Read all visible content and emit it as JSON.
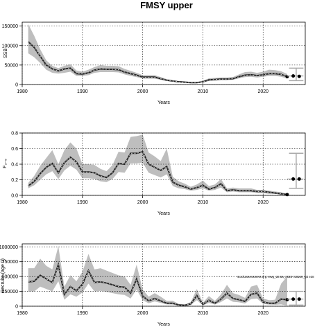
{
  "figure": {
    "title": "FMSY upper",
    "note": "stockassessment.org: ewg_22.6a_2024 r18160_git e38"
  },
  "chart_data": [
    {
      "type": "line",
      "xlabel": "Years",
      "ylabel": "SSB",
      "xlim": [
        1980,
        2027
      ],
      "ylim": [
        0,
        160000
      ],
      "xticks": [
        1980,
        1990,
        2000,
        2010,
        2020
      ],
      "yticks": [
        0,
        50000,
        100000,
        150000
      ],
      "ytick_labels": [
        "0",
        "50000",
        "100000",
        "150000"
      ],
      "grid": true,
      "colors": {
        "band": "#bebebe",
        "line": "#222222"
      },
      "x": [
        1981,
        1982,
        1983,
        1984,
        1985,
        1986,
        1987,
        1988,
        1989,
        1990,
        1991,
        1992,
        1993,
        1994,
        1995,
        1996,
        1997,
        1998,
        1999,
        2000,
        2001,
        2002,
        2003,
        2004,
        2005,
        2006,
        2007,
        2008,
        2009,
        2010,
        2011,
        2012,
        2013,
        2014,
        2015,
        2016,
        2017,
        2018,
        2019,
        2020,
        2021,
        2022,
        2023,
        2024
      ],
      "estimate": [
        110000,
        95000,
        72000,
        50000,
        40000,
        35000,
        40000,
        42000,
        28000,
        27000,
        30000,
        37000,
        40000,
        39000,
        39000,
        38000,
        32000,
        28000,
        24000,
        19000,
        19000,
        19000,
        15000,
        11000,
        9000,
        7000,
        6000,
        5000,
        5000,
        7000,
        12000,
        13000,
        14000,
        14000,
        15000,
        20000,
        24000,
        25000,
        23000,
        25000,
        28000,
        28000,
        26000,
        20000
      ],
      "lower": [
        80000,
        70000,
        55000,
        38000,
        30000,
        28000,
        30000,
        33000,
        22000,
        22000,
        24000,
        30000,
        32000,
        32000,
        32000,
        31000,
        26000,
        22000,
        19000,
        15000,
        15000,
        15000,
        12000,
        9000,
        7000,
        5500,
        4500,
        4000,
        4000,
        5500,
        9000,
        10000,
        11000,
        11000,
        12000,
        16000,
        19000,
        20000,
        18000,
        20000,
        22000,
        22000,
        20000,
        15000
      ],
      "upper": [
        155000,
        125000,
        90000,
        62000,
        48000,
        42000,
        48000,
        52000,
        36000,
        33000,
        38000,
        45000,
        50000,
        48000,
        48000,
        47000,
        40000,
        35000,
        30000,
        24000,
        24000,
        24000,
        19000,
        14000,
        11000,
        9000,
        8000,
        6500,
        6500,
        9000,
        16000,
        17000,
        18000,
        18000,
        19000,
        26000,
        32000,
        33000,
        30000,
        33000,
        38000,
        37000,
        34000,
        27000
      ],
      "forecast": {
        "x": [
          2025,
          2026
        ],
        "values": [
          22000,
          21000
        ],
        "interval": {
          "x": 2025.5,
          "low": 10000,
          "high": 42000
        }
      }
    },
    {
      "type": "line",
      "xlabel": "Years",
      "ylabel": "F₃₋₅",
      "xlim": [
        1980,
        2027
      ],
      "ylim": [
        0,
        0.8
      ],
      "xticks": [
        1980,
        1990,
        2000,
        2010,
        2020
      ],
      "yticks": [
        0,
        0.2,
        0.4,
        0.6,
        0.8
      ],
      "ytick_labels": [
        "0.0",
        "0.2",
        "0.4",
        "0.6",
        "0.8"
      ],
      "grid": true,
      "colors": {
        "band": "#bebebe",
        "line": "#222222"
      },
      "x": [
        1981,
        1982,
        1983,
        1984,
        1985,
        1986,
        1987,
        1988,
        1989,
        1990,
        1991,
        1992,
        1993,
        1994,
        1995,
        1996,
        1997,
        1998,
        1999,
        2000,
        2001,
        2002,
        2003,
        2004,
        2005,
        2006,
        2007,
        2008,
        2009,
        2010,
        2011,
        2012,
        2013,
        2014,
        2015,
        2016,
        2017,
        2018,
        2019,
        2020,
        2021,
        2022,
        2023,
        2024
      ],
      "estimate": [
        0.12,
        0.18,
        0.28,
        0.36,
        0.41,
        0.29,
        0.42,
        0.49,
        0.43,
        0.3,
        0.3,
        0.29,
        0.25,
        0.23,
        0.29,
        0.41,
        0.4,
        0.54,
        0.54,
        0.56,
        0.4,
        0.36,
        0.32,
        0.37,
        0.17,
        0.13,
        0.11,
        0.08,
        0.1,
        0.13,
        0.08,
        0.1,
        0.15,
        0.06,
        0.07,
        0.06,
        0.06,
        0.06,
        0.05,
        0.05,
        0.04,
        0.03,
        0.02,
        0.01
      ],
      "lower": [
        0.09,
        0.13,
        0.2,
        0.27,
        0.31,
        0.21,
        0.32,
        0.38,
        0.33,
        0.22,
        0.22,
        0.21,
        0.18,
        0.17,
        0.21,
        0.3,
        0.29,
        0.41,
        0.41,
        0.42,
        0.29,
        0.26,
        0.23,
        0.27,
        0.12,
        0.09,
        0.08,
        0.06,
        0.07,
        0.09,
        0.06,
        0.07,
        0.1,
        0.04,
        0.05,
        0.04,
        0.04,
        0.04,
        0.03,
        0.03,
        0.02,
        0.02,
        0.01,
        0.005
      ],
      "upper": [
        0.16,
        0.25,
        0.38,
        0.48,
        0.58,
        0.4,
        0.58,
        0.68,
        0.6,
        0.4,
        0.4,
        0.39,
        0.34,
        0.31,
        0.39,
        0.56,
        0.55,
        0.75,
        0.76,
        0.78,
        0.55,
        0.5,
        0.44,
        0.6,
        0.24,
        0.18,
        0.15,
        0.11,
        0.14,
        0.19,
        0.12,
        0.14,
        0.21,
        0.09,
        0.1,
        0.09,
        0.09,
        0.09,
        0.07,
        0.07,
        0.06,
        0.05,
        0.04,
        0.02
      ],
      "forecast": {
        "x": [
          2025,
          2026
        ],
        "values": [
          0.21,
          0.21
        ],
        "interval": {
          "x": 2025.5,
          "low": 0.09,
          "high": 0.54
        }
      }
    },
    {
      "type": "line",
      "xlabel": "Years",
      "ylabel": "Recruits (age 0)",
      "xlim": [
        1980,
        2027
      ],
      "ylim": [
        0,
        1050000
      ],
      "xticks": [
        1980,
        1990,
        2000,
        2010,
        2020
      ],
      "yticks": [
        0,
        250000,
        500000,
        750000,
        1000000
      ],
      "ytick_labels": [
        "0",
        "250000",
        "500000",
        "750000",
        "1000000"
      ],
      "grid": true,
      "colors": {
        "band": "#bebebe",
        "line": "#222222"
      },
      "x": [
        1981,
        1982,
        1983,
        1984,
        1985,
        1986,
        1987,
        1988,
        1989,
        1990,
        1991,
        1992,
        1993,
        1994,
        1995,
        1996,
        1997,
        1998,
        1999,
        2000,
        2001,
        2002,
        2003,
        2004,
        2005,
        2006,
        2007,
        2008,
        2009,
        2010,
        2011,
        2012,
        2013,
        2014,
        2015,
        2016,
        2017,
        2018,
        2019,
        2020,
        2021,
        2022,
        2023,
        2024
      ],
      "estimate": [
        410000,
        420000,
        520000,
        460000,
        400000,
        700000,
        200000,
        330000,
        260000,
        370000,
        600000,
        400000,
        410000,
        390000,
        360000,
        330000,
        320000,
        220000,
        460000,
        170000,
        90000,
        130000,
        90000,
        50000,
        50000,
        20000,
        15000,
        40000,
        180000,
        30000,
        100000,
        50000,
        120000,
        220000,
        130000,
        110000,
        80000,
        200000,
        220000,
        70000,
        50000,
        50000,
        120000,
        110000
      ],
      "lower": [
        250000,
        250000,
        330000,
        290000,
        250000,
        420000,
        110000,
        200000,
        160000,
        230000,
        380000,
        250000,
        260000,
        240000,
        220000,
        200000,
        190000,
        130000,
        280000,
        100000,
        50000,
        80000,
        55000,
        30000,
        28000,
        10000,
        7000,
        20000,
        100000,
        15000,
        55000,
        28000,
        70000,
        130000,
        75000,
        65000,
        45000,
        120000,
        130000,
        40000,
        28000,
        25000,
        30000,
        10000
      ],
      "upper": [
        640000,
        640000,
        800000,
        680000,
        620000,
        1010000,
        330000,
        520000,
        420000,
        580000,
        880000,
        620000,
        640000,
        600000,
        560000,
        520000,
        500000,
        360000,
        700000,
        280000,
        160000,
        220000,
        160000,
        90000,
        90000,
        40000,
        30000,
        70000,
        290000,
        60000,
        170000,
        90000,
        200000,
        360000,
        220000,
        190000,
        140000,
        330000,
        360000,
        130000,
        100000,
        110000,
        380000,
        500000
      ],
      "forecast": {
        "x": [
          2025,
          2026
        ],
        "values": [
          120000,
          120000
        ],
        "interval": {
          "x": 2025.5,
          "low": 20000,
          "high": 250000
        }
      }
    }
  ]
}
